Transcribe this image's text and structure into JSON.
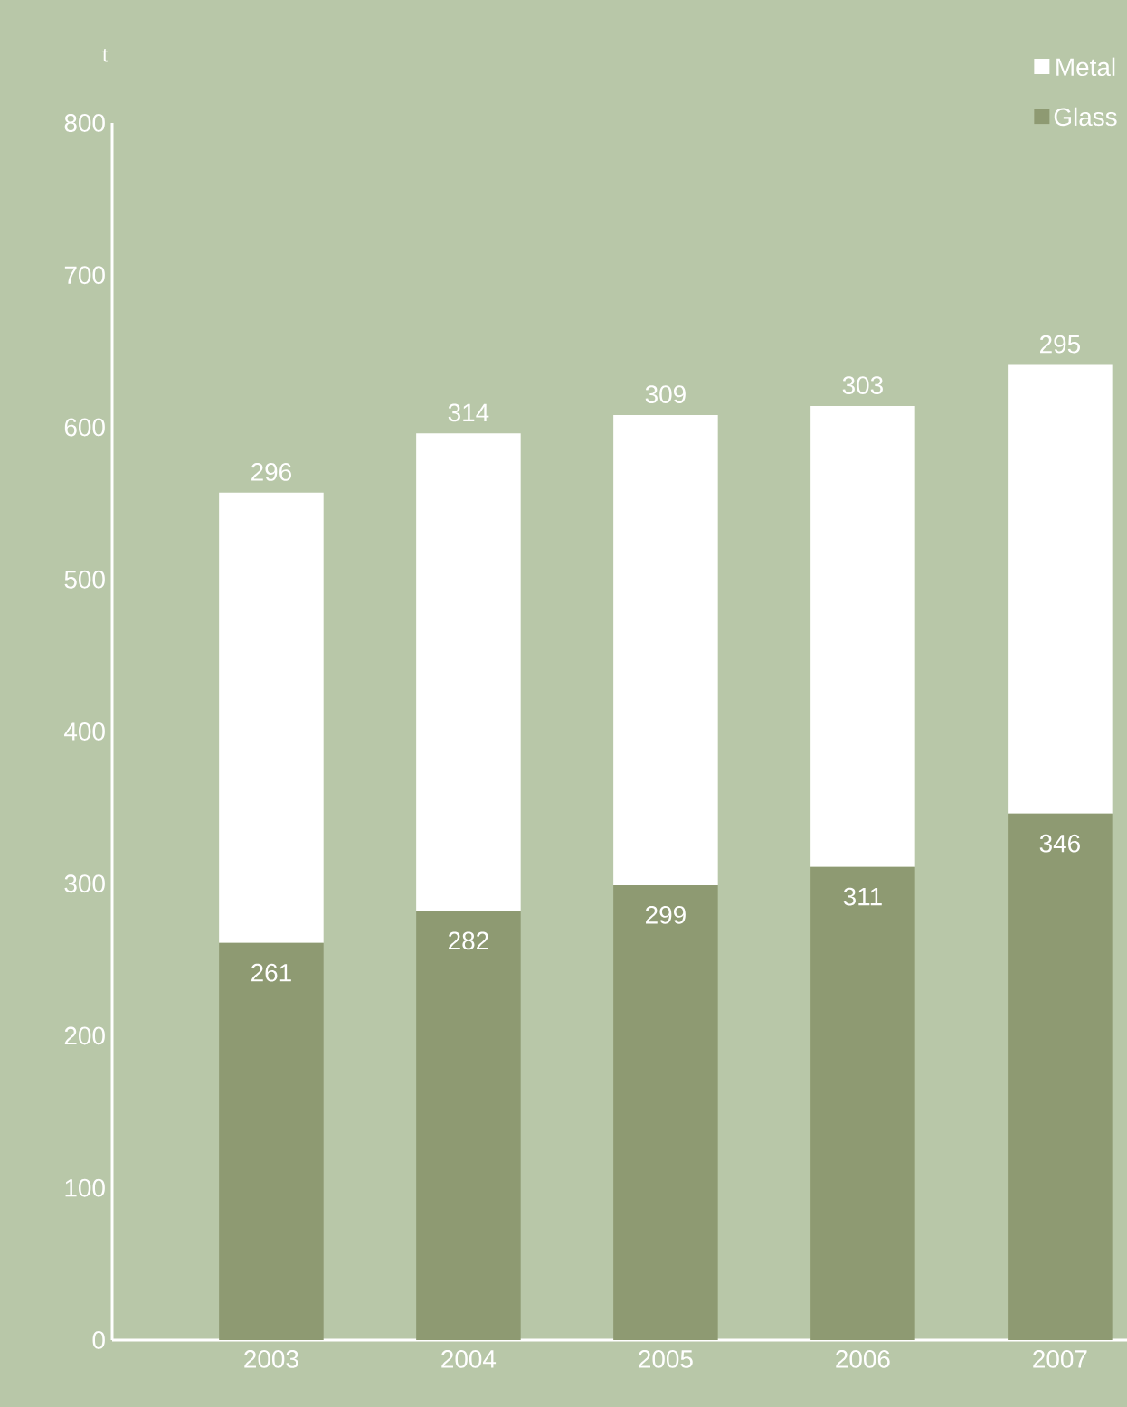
{
  "chart_data": {
    "type": "bar",
    "stacked": true,
    "ylabel": "t",
    "categories": [
      "2003",
      "2004",
      "2005",
      "2006",
      "2007"
    ],
    "series": [
      {
        "name": "Glass",
        "color": "#8e9a72",
        "values": [
          261,
          282,
          299,
          311,
          346
        ]
      },
      {
        "name": "Metal",
        "color": "#ffffff",
        "values": [
          296,
          314,
          309,
          303,
          295
        ]
      }
    ],
    "ylim": [
      0,
      800
    ],
    "yticks": [
      0,
      100,
      200,
      300,
      400,
      500,
      600,
      700,
      800
    ],
    "data_labels": true,
    "legend": "top right",
    "grid": false
  }
}
